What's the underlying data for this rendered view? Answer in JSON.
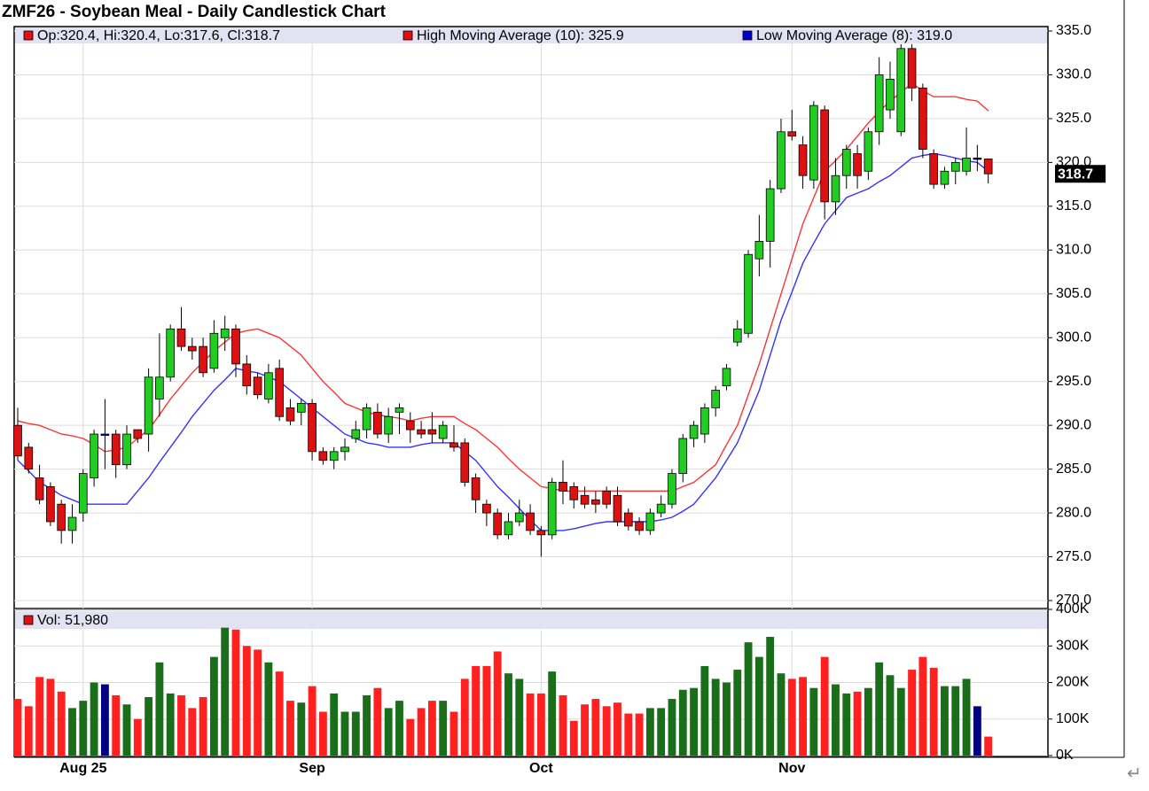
{
  "chart_data": {
    "type": "candlestick",
    "title": "ZMF26 - Soybean Meal - Daily Candlestick Chart",
    "ohlc_legend": {
      "label": "Op:320.4, Hi:320.4, Lo:317.6, Cl:318.7",
      "color": "#dd1111"
    },
    "volume_legend": {
      "label": "Vol: 51,980",
      "color": "#dd1111"
    },
    "last_price": 318.7,
    "corner_mark": "↵",
    "up_color": "#22cc22",
    "down_color": "#dd1111",
    "flat_color": "#000080",
    "volume_up_color": "#1a6e1a",
    "volume_down_color": "#ff2020",
    "grid": true,
    "categories": [
      null,
      null,
      null,
      null,
      null,
      null,
      "Aug 25",
      null,
      null,
      null,
      null,
      null,
      null,
      null,
      null,
      null,
      null,
      null,
      null,
      null,
      null,
      null,
      null,
      null,
      null,
      null,
      null,
      "Sep",
      null,
      null,
      null,
      null,
      null,
      null,
      null,
      null,
      null,
      null,
      null,
      null,
      null,
      null,
      null,
      null,
      null,
      null,
      null,
      null,
      "Oct",
      null,
      null,
      null,
      null,
      null,
      null,
      null,
      null,
      null,
      null,
      null,
      null,
      null,
      null,
      null,
      null,
      null,
      null,
      null,
      null,
      null,
      null,
      "Nov",
      null,
      null,
      null,
      null,
      null,
      null,
      null,
      null,
      null,
      null,
      null,
      null,
      null,
      null,
      null,
      null,
      null,
      null
    ],
    "open": [
      290,
      287.5,
      284,
      283,
      281,
      278,
      280,
      284,
      289,
      289,
      285.5,
      289.5,
      289,
      293,
      295.5,
      301,
      299,
      299,
      296.5,
      300,
      301,
      297,
      295.5,
      293,
      296.5,
      292,
      291.5,
      292.5,
      287,
      286,
      287,
      288.5,
      289.5,
      291.5,
      289,
      291.5,
      290.5,
      289.5,
      289.5,
      288.5,
      288,
      288,
      284,
      281,
      280,
      277.5,
      279,
      280,
      278,
      277.5,
      283.5,
      283,
      282,
      281.5,
      282.5,
      282,
      280,
      279,
      278,
      280,
      281,
      284.5,
      288.5,
      289,
      292,
      294.5,
      299.5,
      300.5,
      309,
      311,
      317,
      323.5,
      322,
      318,
      326,
      315.5,
      318.5,
      321,
      319,
      323.5,
      326,
      323.5,
      333,
      328.5,
      321,
      317.5,
      319,
      319,
      320.5,
      320.4
    ],
    "high": [
      292,
      288,
      285.5,
      283.5,
      281.5,
      281,
      285,
      289.5,
      293,
      289.5,
      290,
      289.5,
      296.5,
      300.5,
      301.5,
      303.5,
      300,
      300,
      302,
      302.5,
      301.5,
      298,
      296,
      297,
      297.5,
      293,
      293,
      293,
      287.5,
      287.5,
      288.5,
      290.5,
      292.5,
      292.5,
      292,
      292.5,
      291.5,
      290.5,
      291.5,
      290.5,
      290,
      288.5,
      284.5,
      281.5,
      280.5,
      280,
      281.5,
      281,
      278.5,
      284,
      286,
      283.5,
      283,
      282.5,
      283,
      283,
      280.5,
      279.5,
      280.5,
      282,
      285,
      289,
      290.5,
      292.5,
      294.5,
      297,
      302,
      310,
      314,
      318,
      325,
      326,
      323,
      327,
      326.5,
      320.5,
      322,
      322,
      324,
      332,
      331.5,
      333.5,
      333.5,
      329,
      321.5,
      319.5,
      320.5,
      324,
      322,
      320.4
    ],
    "low": [
      286,
      284.5,
      281,
      278.5,
      276.5,
      276.5,
      279,
      283,
      285,
      284,
      285,
      288,
      287,
      291,
      295,
      298.5,
      297.5,
      295.5,
      296,
      298.5,
      295.5,
      293.5,
      293,
      292.5,
      290.5,
      290,
      290,
      286,
      285.5,
      285,
      286,
      288,
      288.5,
      288.5,
      288,
      289,
      288,
      288.5,
      288,
      288,
      287,
      283,
      280,
      278.5,
      277,
      277,
      278.5,
      277.5,
      275,
      277,
      281,
      280.5,
      280.5,
      280,
      280.5,
      278.5,
      278,
      277.5,
      277.5,
      279.5,
      280.5,
      283.5,
      287.5,
      288,
      291,
      294,
      299,
      300,
      307,
      308,
      316.5,
      322.5,
      317,
      317,
      313.5,
      314,
      317,
      317,
      318,
      322,
      325,
      323,
      327,
      320.5,
      317,
      317,
      317.5,
      318.5,
      319,
      317.6
    ],
    "close": [
      286.5,
      285,
      281.5,
      279,
      278,
      279.5,
      284.5,
      289,
      289,
      285.5,
      289,
      288.5,
      295.5,
      295.5,
      301,
      299,
      298.5,
      296,
      300.5,
      301,
      297,
      294.5,
      293.5,
      296,
      291,
      290.5,
      292.5,
      287,
      286,
      287,
      287.5,
      289.5,
      292,
      289,
      291,
      292,
      289.5,
      289,
      289,
      290,
      287.5,
      283.5,
      281.5,
      280,
      277.5,
      279,
      280,
      278,
      277.5,
      283.5,
      282.5,
      281.5,
      281,
      281,
      281,
      279,
      278.5,
      278,
      280,
      281,
      284.5,
      288.5,
      290,
      292,
      294,
      296.5,
      301,
      309.5,
      311,
      317,
      323.5,
      323,
      318.5,
      326.5,
      315.5,
      318.5,
      321.5,
      318.5,
      323.5,
      330,
      329.5,
      333,
      328.5,
      321.5,
      317.5,
      319,
      320,
      320.5,
      320.5,
      318.7
    ],
    "volume": [
      155000,
      135000,
      215000,
      210000,
      175000,
      130000,
      150000,
      200000,
      195000,
      165000,
      140000,
      100000,
      160000,
      255000,
      170000,
      165000,
      130000,
      160000,
      270000,
      350000,
      345000,
      300000,
      290000,
      255000,
      230000,
      150000,
      145000,
      190000,
      120000,
      170000,
      120000,
      120000,
      165000,
      185000,
      130000,
      150000,
      100000,
      130000,
      150000,
      150000,
      120000,
      210000,
      245000,
      245000,
      285000,
      225000,
      210000,
      170000,
      170000,
      230000,
      165000,
      95000,
      140000,
      155000,
      135000,
      145000,
      115000,
      115000,
      130000,
      130000,
      155000,
      180000,
      185000,
      245000,
      210000,
      200000,
      235000,
      310000,
      270000,
      325000,
      225000,
      210000,
      215000,
      185000,
      270000,
      195000,
      170000,
      175000,
      185000,
      255000,
      220000,
      185000,
      235000,
      270000,
      240000,
      190000,
      190000,
      210000,
      135000,
      51980
    ],
    "series": [
      {
        "name": "High Moving Average (10): 325.9",
        "color": "#dd1111",
        "line_color": "#ff3333",
        "values": [
          290.5,
          290.2,
          290,
          289.5,
          289,
          288.8,
          288.5,
          287.8,
          287,
          287.2,
          287.5,
          288.5,
          289.5,
          291.2,
          293,
          294.5,
          296,
          297.2,
          298.5,
          299.5,
          300.5,
          300.8,
          301,
          300.5,
          300,
          299,
          298,
          296.5,
          295,
          293.8,
          292.5,
          292,
          291.5,
          291.2,
          291,
          290.8,
          290.5,
          290.8,
          291,
          291,
          291,
          290.2,
          289.5,
          288.5,
          287.5,
          286.2,
          285,
          284,
          283,
          282.8,
          282.5,
          282.5,
          282.5,
          282.5,
          282.5,
          282.5,
          282.5,
          282.5,
          282.5,
          282.5,
          282.5,
          283,
          283.5,
          284.5,
          285.5,
          287.8,
          290,
          293.5,
          297,
          301,
          305,
          309,
          313,
          316,
          319,
          320.2,
          321.5,
          323,
          324.5,
          325.8,
          327,
          328,
          329,
          328.2,
          327.5,
          327.5,
          327.5,
          327.2,
          327,
          325.9
        ]
      },
      {
        "name": "Low Moving Average (8): 319.0",
        "color": "#0000cc",
        "line_color": "#3333ff",
        "values": [
          286,
          284.8,
          283.5,
          282.8,
          282,
          281.5,
          281,
          281,
          281,
          281,
          281,
          282.5,
          284,
          285.8,
          287.5,
          289.2,
          291,
          292.5,
          294,
          295.2,
          296.5,
          296.2,
          296,
          295.5,
          295,
          294,
          293,
          292,
          291,
          290,
          289,
          288.5,
          288,
          287.8,
          287.5,
          287.5,
          287.5,
          287.8,
          288,
          288,
          288,
          287,
          286,
          284.5,
          283,
          281.8,
          280.5,
          279.2,
          278,
          278,
          278,
          278.2,
          278.5,
          278.8,
          279,
          279,
          279,
          279,
          279,
          279.2,
          279.5,
          280.2,
          281,
          282.5,
          284,
          286,
          288,
          291,
          294,
          298,
          302,
          305.2,
          308.5,
          310.8,
          313,
          314.5,
          316,
          316.5,
          317,
          317.8,
          318.5,
          319.5,
          320.5,
          320.8,
          321,
          320.8,
          320.5,
          320.2,
          320,
          319.0
        ]
      }
    ],
    "ylim": [
      270,
      335
    ],
    "yticks": [
      {
        "value": 270,
        "label": "270.0"
      },
      {
        "value": 275,
        "label": "275.0"
      },
      {
        "value": 280,
        "label": "280.0"
      },
      {
        "value": 285,
        "label": "285.0"
      },
      {
        "value": 290,
        "label": "290.0"
      },
      {
        "value": 295,
        "label": "295.0"
      },
      {
        "value": 300,
        "label": "300.0"
      },
      {
        "value": 305,
        "label": "305.0"
      },
      {
        "value": 310,
        "label": "310.0"
      },
      {
        "value": 315,
        "label": "315.0"
      },
      {
        "value": 320,
        "label": "320.0"
      },
      {
        "value": 325,
        "label": "325.0"
      },
      {
        "value": 330,
        "label": "330.0"
      },
      {
        "value": 335,
        "label": "335.0"
      }
    ],
    "volume_ylim": [
      0,
      400000
    ],
    "volume_yticks": [
      {
        "value": 0,
        "label": "0K"
      },
      {
        "value": 100000,
        "label": "100K"
      },
      {
        "value": 200000,
        "label": "200K"
      },
      {
        "value": 300000,
        "label": "300K"
      },
      {
        "value": 400000,
        "label": "400K"
      }
    ]
  }
}
